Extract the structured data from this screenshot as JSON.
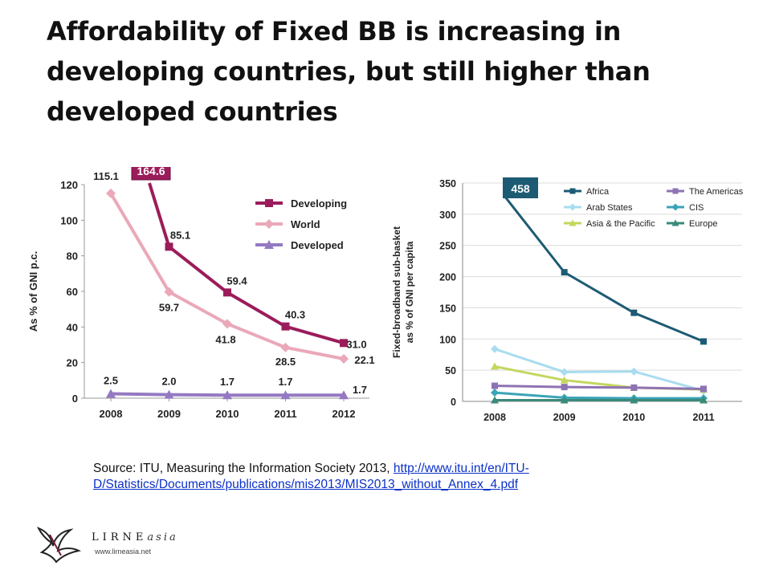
{
  "slide": {
    "title": "Affordability of Fixed BB is increasing in developing countries, but still higher than developed countries",
    "source_prefix": "Source: ITU, Measuring the Information Society 2013, ",
    "source_link": "http://www.itu.int/en/ITU-D/Statistics/Documents/publications/mis2013/MIS2013_without_Annex_4.pdf",
    "logo_text": "LIRNE",
    "logo_text_suffix": "asia",
    "logo_url": "www.lirneasia.net"
  },
  "chart_data": [
    {
      "type": "line",
      "categories": [
        "2008",
        "2009",
        "2010",
        "2011",
        "2012"
      ],
      "ylabel": "As % of GNI p.c.",
      "ylim": [
        0,
        120
      ],
      "yticks": [
        0,
        20,
        40,
        60,
        80,
        100,
        120
      ],
      "legend_position": "top-right",
      "series": [
        {
          "name": "Developing",
          "color": "#9b1c5b",
          "marker": "square",
          "values": [
            164.6,
            85.1,
            59.4,
            40.3,
            31.0
          ],
          "labels": [
            "164.6",
            "85.1",
            "59.4",
            "40.3",
            "31.0"
          ]
        },
        {
          "name": "World",
          "color": "#eaa8b8",
          "marker": "diamond",
          "values": [
            115.1,
            59.7,
            41.8,
            28.5,
            22.1
          ],
          "labels": [
            "115.1",
            "59.7",
            "41.8",
            "28.5",
            "22.1"
          ]
        },
        {
          "name": "Developed",
          "color": "#9479c2",
          "marker": "triangle",
          "values": [
            2.5,
            2.0,
            1.7,
            1.7,
            1.7
          ],
          "labels": [
            "2.5",
            "2.0",
            "1.7",
            "1.7",
            "1.7"
          ]
        }
      ]
    },
    {
      "type": "line",
      "categories": [
        "2008",
        "2009",
        "2010",
        "2011"
      ],
      "ylabel": "Fixed-broadband sub-basket as % of GNI per capita",
      "ylim": [
        0,
        350
      ],
      "yticks": [
        0,
        50,
        100,
        150,
        200,
        250,
        300,
        350
      ],
      "grid": true,
      "legend_position": "top-right",
      "callout": "458",
      "series": [
        {
          "name": "Africa",
          "color": "#1d5b74",
          "marker": "square",
          "values": [
            458,
            207,
            142,
            96
          ]
        },
        {
          "name": "Arab States",
          "color": "#a9dcef",
          "marker": "diamond",
          "values": [
            84,
            47,
            48,
            17
          ]
        },
        {
          "name": "Asia & the Pacific",
          "color": "#c5d65e",
          "marker": "triangle",
          "values": [
            56,
            34,
            22,
            19
          ]
        },
        {
          "name": "The Americas",
          "color": "#8e73b3",
          "marker": "square",
          "values": [
            25,
            23,
            22,
            20
          ]
        },
        {
          "name": "CIS",
          "color": "#3aa4b8",
          "marker": "diamond",
          "values": [
            14,
            6,
            5,
            5
          ]
        },
        {
          "name": "Europe",
          "color": "#3a8a7a",
          "marker": "triangle",
          "values": [
            2,
            2,
            2,
            2
          ]
        }
      ]
    }
  ]
}
